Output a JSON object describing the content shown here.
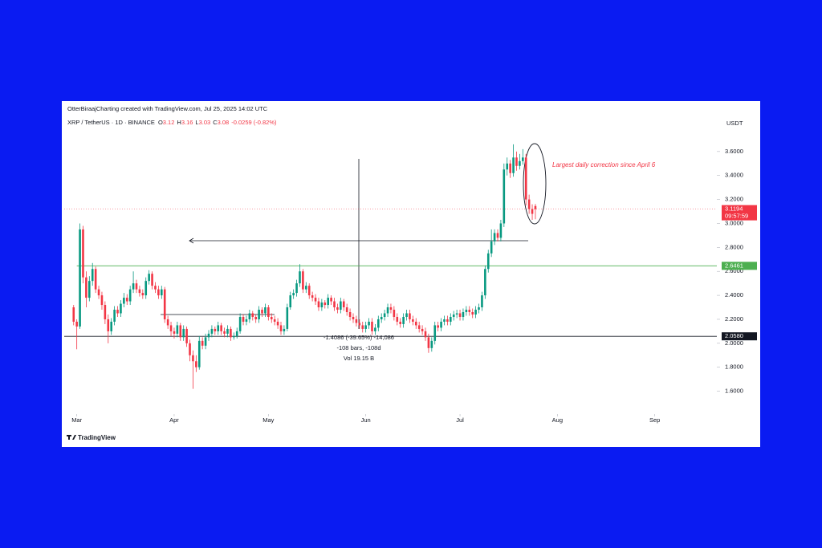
{
  "chart_data": {
    "type": "candlestick",
    "created_by": "OtterBiraajCharting created with TradingView.com, Jul 25, 2025 14:02 UTC",
    "symbol": "XRP / TetherUS · 1D · BINANCE",
    "ohlc_keys": [
      "O",
      "H",
      "L",
      "C"
    ],
    "change": "-0.0259 (-0.82%)",
    "currency": "USDT",
    "countdown": "09:57:59",
    "annotation": "Largest daily correction since April 6",
    "measure": [
      "-1.4086 (-39.65%) -14,086",
      "-108 bars, -108d",
      "Vol 19.15 B"
    ],
    "brand": "TradingView",
    "up_color": "#089981",
    "down_color": "#f23645",
    "xlim": [
      -4,
      203
    ],
    "xticks": [
      {
        "value": 0,
        "label": "Mar"
      },
      {
        "value": 31,
        "label": "Apr"
      },
      {
        "value": 61,
        "label": "May"
      },
      {
        "value": 92,
        "label": "Jun"
      },
      {
        "value": 122,
        "label": "Jul"
      },
      {
        "value": 153,
        "label": "Aug"
      },
      {
        "value": 184,
        "label": "Sep"
      }
    ],
    "ylim": [
      1.45,
      3.86
    ],
    "yticks": [
      {
        "value": 1.6,
        "label": "1.6000"
      },
      {
        "value": 1.8,
        "label": "1.8000"
      },
      {
        "value": 2.0,
        "label": "2.0000"
      },
      {
        "value": 2.2,
        "label": "2.2000"
      },
      {
        "value": 2.4,
        "label": "2.4000"
      },
      {
        "value": 2.6,
        "label": "2.6000"
      },
      {
        "value": 2.8,
        "label": "2.8000"
      },
      {
        "value": 3.0,
        "label": "3.0000"
      },
      {
        "value": 3.2,
        "label": "3.2000"
      },
      {
        "value": 3.4,
        "label": "3.4000"
      },
      {
        "value": 3.6,
        "label": "3.6000"
      }
    ],
    "levels": [
      {
        "value": 2.6461,
        "label": "2.6461",
        "color": "#4caf50"
      },
      {
        "value": 2.058,
        "label": "2.0580",
        "color": "#131722"
      }
    ],
    "x": [
      -1,
      0,
      1,
      2,
      3,
      4,
      5,
      6,
      7,
      8,
      9,
      10,
      11,
      12,
      13,
      14,
      15,
      16,
      17,
      18,
      19,
      20,
      21,
      22,
      23,
      24,
      25,
      26,
      27,
      28,
      29,
      30,
      31,
      32,
      33,
      34,
      35,
      36,
      37,
      38,
      39,
      40,
      41,
      42,
      43,
      44,
      45,
      46,
      47,
      48,
      49,
      50,
      51,
      52,
      53,
      54,
      55,
      56,
      57,
      58,
      59,
      60,
      61,
      62,
      63,
      64,
      65,
      66,
      67,
      68,
      69,
      70,
      71,
      72,
      73,
      74,
      75,
      76,
      77,
      78,
      79,
      80,
      81,
      82,
      83,
      84,
      85,
      86,
      87,
      88,
      89,
      90,
      91,
      92,
      93,
      94,
      95,
      96,
      97,
      98,
      99,
      100,
      101,
      102,
      103,
      104,
      105,
      106,
      107,
      108,
      109,
      110,
      111,
      112,
      113,
      114,
      115,
      116,
      117,
      118,
      119,
      120,
      121,
      122,
      123,
      124,
      125,
      126,
      127,
      128,
      129,
      130,
      131,
      132,
      133,
      134,
      135,
      136,
      137,
      138,
      139,
      140,
      141,
      142,
      143,
      144,
      145,
      146
    ],
    "ohlc": [
      [
        2.3,
        2.32,
        2.15,
        2.18
      ],
      [
        2.18,
        2.2,
        1.95,
        2.14
      ],
      [
        2.14,
        3.0,
        2.12,
        2.95
      ],
      [
        2.95,
        2.98,
        2.5,
        2.55
      ],
      [
        2.55,
        2.6,
        2.3,
        2.38
      ],
      [
        2.38,
        2.56,
        2.35,
        2.52
      ],
      [
        2.52,
        2.67,
        2.48,
        2.62
      ],
      [
        2.62,
        2.64,
        2.42,
        2.45
      ],
      [
        2.45,
        2.48,
        2.37,
        2.4
      ],
      [
        2.4,
        2.43,
        2.28,
        2.32
      ],
      [
        2.32,
        2.35,
        2.16,
        2.2
      ],
      [
        2.2,
        2.24,
        2.0,
        2.1
      ],
      [
        2.1,
        2.21,
        2.07,
        2.18
      ],
      [
        2.18,
        2.31,
        2.15,
        2.28
      ],
      [
        2.28,
        2.31,
        2.22,
        2.25
      ],
      [
        2.25,
        2.36,
        2.22,
        2.33
      ],
      [
        2.33,
        2.42,
        2.3,
        2.38
      ],
      [
        2.38,
        2.41,
        2.32,
        2.35
      ],
      [
        2.35,
        2.48,
        2.32,
        2.45
      ],
      [
        2.45,
        2.6,
        2.42,
        2.5
      ],
      [
        2.5,
        2.53,
        2.42,
        2.45
      ],
      [
        2.45,
        2.48,
        2.39,
        2.42
      ],
      [
        2.42,
        2.45,
        2.37,
        2.4
      ],
      [
        2.4,
        2.55,
        2.37,
        2.52
      ],
      [
        2.52,
        2.61,
        2.49,
        2.58
      ],
      [
        2.58,
        2.6,
        2.45,
        2.48
      ],
      [
        2.48,
        2.51,
        2.42,
        2.45
      ],
      [
        2.45,
        2.48,
        2.37,
        2.4
      ],
      [
        2.4,
        2.48,
        2.37,
        2.45
      ],
      [
        2.45,
        2.47,
        2.17,
        2.2
      ],
      [
        2.2,
        2.23,
        2.12,
        2.15
      ],
      [
        2.15,
        2.18,
        2.06,
        2.1
      ],
      [
        2.1,
        2.13,
        2.04,
        2.08
      ],
      [
        2.08,
        2.18,
        2.05,
        2.15
      ],
      [
        2.15,
        2.17,
        2.02,
        2.05
      ],
      [
        2.05,
        2.15,
        2.02,
        2.12
      ],
      [
        2.12,
        2.14,
        1.97,
        2.0
      ],
      [
        2.0,
        2.03,
        1.85,
        1.9
      ],
      [
        1.9,
        1.94,
        1.62,
        1.85
      ],
      [
        1.85,
        1.9,
        1.76,
        1.8
      ],
      [
        1.8,
        2.06,
        1.78,
        2.02
      ],
      [
        2.02,
        2.05,
        1.95,
        1.98
      ],
      [
        1.98,
        2.08,
        1.95,
        2.05
      ],
      [
        2.05,
        2.11,
        2.02,
        2.08
      ],
      [
        2.08,
        2.15,
        2.05,
        2.12
      ],
      [
        2.12,
        2.14,
        2.07,
        2.1
      ],
      [
        2.1,
        2.18,
        2.07,
        2.15
      ],
      [
        2.15,
        2.17,
        2.07,
        2.1
      ],
      [
        2.1,
        2.13,
        2.05,
        2.08
      ],
      [
        2.08,
        2.15,
        2.05,
        2.12
      ],
      [
        2.12,
        2.14,
        2.02,
        2.05
      ],
      [
        2.05,
        2.09,
        2.03,
        2.06
      ],
      [
        2.06,
        2.13,
        2.04,
        2.1
      ],
      [
        2.1,
        2.25,
        2.08,
        2.22
      ],
      [
        2.22,
        2.24,
        2.15,
        2.18
      ],
      [
        2.18,
        2.23,
        2.15,
        2.2
      ],
      [
        2.2,
        2.28,
        2.17,
        2.25
      ],
      [
        2.25,
        2.27,
        2.19,
        2.22
      ],
      [
        2.22,
        2.24,
        2.17,
        2.2
      ],
      [
        2.2,
        2.31,
        2.17,
        2.28
      ],
      [
        2.28,
        2.3,
        2.22,
        2.25
      ],
      [
        2.25,
        2.33,
        2.22,
        2.3
      ],
      [
        2.3,
        2.32,
        2.19,
        2.22
      ],
      [
        2.22,
        2.25,
        2.17,
        2.2
      ],
      [
        2.2,
        2.23,
        2.15,
        2.18
      ],
      [
        2.18,
        2.21,
        2.12,
        2.15
      ],
      [
        2.15,
        2.18,
        2.07,
        2.1
      ],
      [
        2.1,
        2.15,
        2.07,
        2.12
      ],
      [
        2.12,
        2.33,
        2.1,
        2.3
      ],
      [
        2.3,
        2.43,
        2.28,
        2.4
      ],
      [
        2.4,
        2.45,
        2.37,
        2.42
      ],
      [
        2.42,
        2.53,
        2.39,
        2.5
      ],
      [
        2.5,
        2.66,
        2.47,
        2.6
      ],
      [
        2.6,
        2.62,
        2.42,
        2.45
      ],
      [
        2.45,
        2.51,
        2.42,
        2.48
      ],
      [
        2.48,
        2.5,
        2.37,
        2.4
      ],
      [
        2.4,
        2.43,
        2.35,
        2.38
      ],
      [
        2.38,
        2.41,
        2.32,
        2.35
      ],
      [
        2.35,
        2.38,
        2.27,
        2.3
      ],
      [
        2.3,
        2.37,
        2.27,
        2.34
      ],
      [
        2.34,
        2.36,
        2.29,
        2.32
      ],
      [
        2.32,
        2.41,
        2.29,
        2.38
      ],
      [
        2.38,
        2.4,
        2.32,
        2.35
      ],
      [
        2.35,
        2.38,
        2.27,
        2.3
      ],
      [
        2.3,
        2.33,
        2.25,
        2.28
      ],
      [
        2.28,
        2.38,
        2.25,
        2.35
      ],
      [
        2.35,
        2.37,
        2.27,
        2.3
      ],
      [
        2.3,
        2.33,
        2.23,
        2.26
      ],
      [
        2.26,
        2.29,
        2.19,
        2.22
      ],
      [
        2.22,
        2.25,
        2.17,
        2.2
      ],
      [
        2.2,
        2.23,
        2.14,
        2.17
      ],
      [
        2.17,
        2.2,
        2.12,
        2.15
      ],
      [
        2.15,
        2.18,
        2.09,
        2.12
      ],
      [
        2.12,
        2.18,
        2.09,
        2.15
      ],
      [
        2.15,
        2.21,
        2.12,
        2.18
      ],
      [
        2.18,
        2.21,
        2.07,
        2.1
      ],
      [
        2.1,
        2.16,
        2.07,
        2.13
      ],
      [
        2.13,
        2.23,
        2.1,
        2.2
      ],
      [
        2.2,
        2.25,
        2.17,
        2.22
      ],
      [
        2.22,
        2.28,
        2.19,
        2.25
      ],
      [
        2.25,
        2.33,
        2.22,
        2.3
      ],
      [
        2.3,
        2.33,
        2.25,
        2.28
      ],
      [
        2.28,
        2.31,
        2.19,
        2.22
      ],
      [
        2.22,
        2.25,
        2.15,
        2.18
      ],
      [
        2.18,
        2.21,
        2.13,
        2.16
      ],
      [
        2.16,
        2.25,
        2.13,
        2.22
      ],
      [
        2.22,
        2.28,
        2.19,
        2.25
      ],
      [
        2.25,
        2.28,
        2.17,
        2.2
      ],
      [
        2.2,
        2.23,
        2.15,
        2.18
      ],
      [
        2.18,
        2.21,
        2.12,
        2.15
      ],
      [
        2.15,
        2.18,
        2.09,
        2.12
      ],
      [
        2.12,
        2.15,
        2.07,
        2.1
      ],
      [
        2.1,
        2.13,
        2.02,
        2.05
      ],
      [
        2.05,
        2.08,
        1.92,
        1.96
      ],
      [
        1.96,
        2.05,
        1.93,
        2.02
      ],
      [
        2.02,
        2.18,
        1.99,
        2.15
      ],
      [
        2.15,
        2.18,
        2.1,
        2.13
      ],
      [
        2.13,
        2.21,
        2.1,
        2.18
      ],
      [
        2.18,
        2.23,
        2.15,
        2.2
      ],
      [
        2.2,
        2.23,
        2.15,
        2.18
      ],
      [
        2.18,
        2.25,
        2.15,
        2.22
      ],
      [
        2.22,
        2.27,
        2.19,
        2.24
      ],
      [
        2.24,
        2.28,
        2.21,
        2.25
      ],
      [
        2.25,
        2.28,
        2.19,
        2.22
      ],
      [
        2.22,
        2.29,
        2.19,
        2.26
      ],
      [
        2.26,
        2.31,
        2.23,
        2.28
      ],
      [
        2.28,
        2.31,
        2.23,
        2.26
      ],
      [
        2.26,
        2.29,
        2.21,
        2.24
      ],
      [
        2.24,
        2.31,
        2.21,
        2.28
      ],
      [
        2.28,
        2.33,
        2.25,
        2.3
      ],
      [
        2.3,
        2.43,
        2.27,
        2.4
      ],
      [
        2.4,
        2.65,
        2.37,
        2.62
      ],
      [
        2.62,
        2.78,
        2.59,
        2.75
      ],
      [
        2.75,
        2.95,
        2.72,
        2.85
      ],
      [
        2.85,
        2.95,
        2.82,
        2.92
      ],
      [
        2.92,
        2.95,
        2.85,
        2.88
      ],
      [
        2.88,
        3.03,
        2.85,
        3.0
      ],
      [
        3.0,
        3.5,
        2.97,
        3.45
      ],
      [
        3.45,
        3.55,
        3.4,
        3.5
      ],
      [
        3.5,
        3.53,
        3.38,
        3.42
      ],
      [
        3.42,
        3.66,
        3.39,
        3.55
      ],
      [
        3.55,
        3.6,
        3.44,
        3.48
      ],
      [
        3.48,
        3.58,
        3.45,
        3.52
      ],
      [
        3.52,
        3.62,
        3.49,
        3.55
      ],
      [
        3.55,
        3.58,
        3.15,
        3.2
      ],
      [
        3.2,
        3.24,
        3.08,
        3.12
      ],
      [
        3.12,
        3.16,
        3.03,
        3.08
      ],
      [
        3.1454,
        3.1618,
        3.0353,
        3.1194
      ]
    ]
  }
}
